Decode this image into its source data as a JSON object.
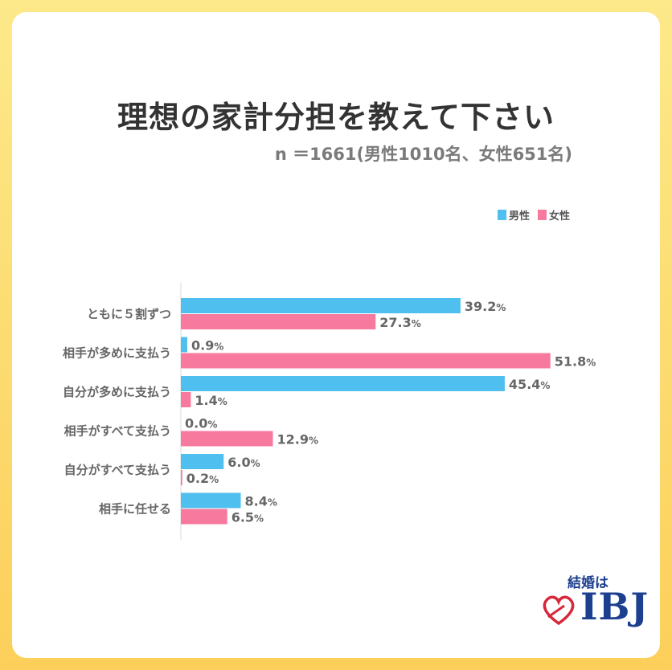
{
  "chart_data": {
    "type": "bar",
    "orientation": "horizontal",
    "title": "理想の家計分担を教えて下さい",
    "subtitle": "n ＝1661(男性1010名、女性651名)",
    "categories": [
      "ともに５割ずつ",
      "相手が多めに支払う",
      "自分が多めに支払う",
      "相手がすべて支払う",
      "自分がすべて支払う",
      "相手に任せる"
    ],
    "series": [
      {
        "name": "男性",
        "color": "#4fbff0",
        "values": [
          39.2,
          0.9,
          45.4,
          0.0,
          6.0,
          8.4
        ],
        "labels": [
          "39.2",
          "0.9",
          "45.4",
          "0.0",
          "6.0",
          "8.4"
        ]
      },
      {
        "name": "女性",
        "color": "#f7799e",
        "values": [
          27.3,
          51.8,
          1.4,
          12.9,
          0.2,
          6.5
        ],
        "labels": [
          "27.3",
          "51.8",
          "1.4",
          "12.9",
          "0.2",
          "6.5"
        ]
      }
    ],
    "unit": "%",
    "legend_position": "top-right",
    "xlim": [
      0,
      52
    ]
  },
  "logo": {
    "tagline": "結婚は",
    "brand": "IBJ",
    "heart_icon": "heart-outline-icon"
  }
}
